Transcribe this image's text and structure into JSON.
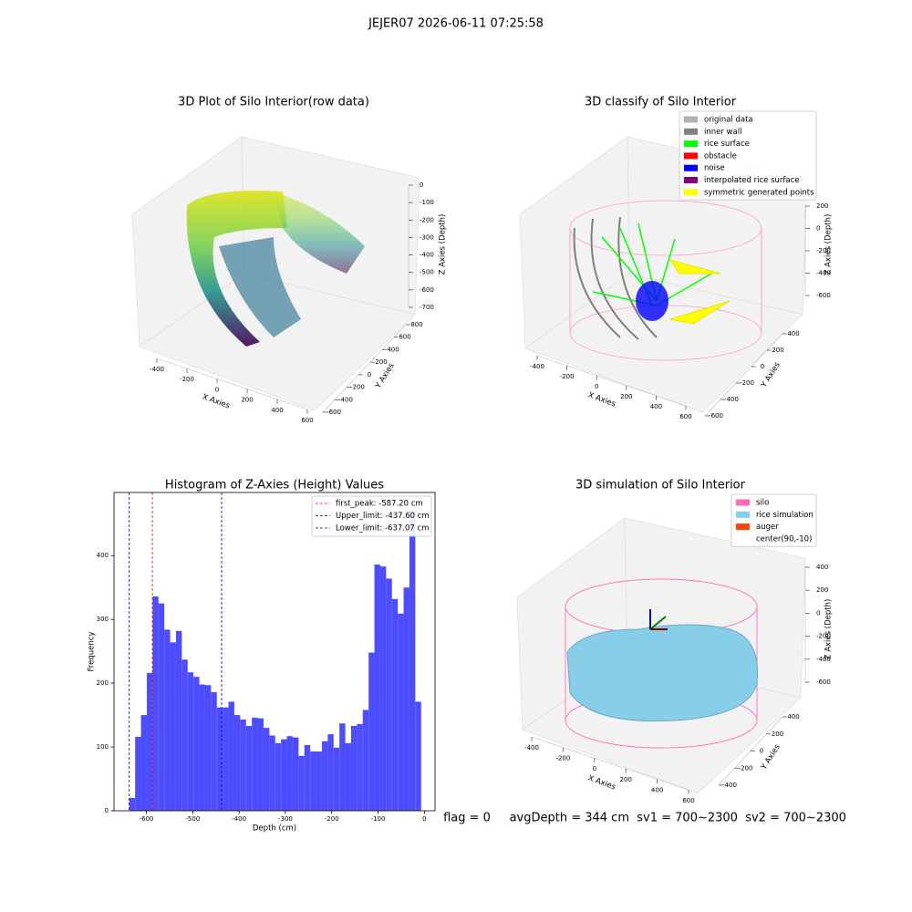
{
  "title": "JEJER07 2026-06-11 07:25:58",
  "footer": "flag = 0     avgDepth = 344 cm  sv1 = 700~2300  sv2 = 700~2300",
  "chart_data": [
    {
      "type": "scatter3d",
      "title": "3D Plot of Silo Interior(row data)",
      "x_label": "X Axies",
      "y_label": "Y Axies",
      "z_label": "Z Axies (Depth)",
      "xlim": [
        -400,
        600
      ],
      "xticks": [
        -400,
        -200,
        0,
        200,
        400,
        600
      ],
      "ylim": [
        -600,
        800
      ],
      "yticks": [
        -600,
        -400,
        -200,
        0,
        200,
        400,
        600,
        800
      ],
      "zlim": [
        -700,
        0
      ],
      "zticks": [
        -700,
        -600,
        -500,
        -400,
        -300,
        -200,
        -100,
        0
      ]
    },
    {
      "type": "scatter3d",
      "title": "3D classify of Silo Interior",
      "x_label": "X Axies",
      "y_label": "Y Axies",
      "z_label": "Z Axies (Depth)",
      "xlim": [
        -400,
        600
      ],
      "xticks": [
        -400,
        -200,
        0,
        200,
        400,
        600
      ],
      "ylim": [
        -600,
        400
      ],
      "yticks": [
        -600,
        -400,
        -200,
        0,
        200,
        400
      ],
      "zlim": [
        -600,
        200
      ],
      "zticks": [
        -600,
        -400,
        -200,
        0,
        200
      ],
      "legend_items": [
        {
          "name": "original data",
          "color": "#b0b0b0"
        },
        {
          "name": "inner wall",
          "color": "#808080"
        },
        {
          "name": "rice surface",
          "color": "#00ff00"
        },
        {
          "name": "obstacle",
          "color": "#ff0000"
        },
        {
          "name": "noise",
          "color": "#0000ff"
        },
        {
          "name": "interpolated rice surface",
          "color": "#800080"
        },
        {
          "name": "symmetric generated points",
          "color": "#ffff00"
        }
      ],
      "legend": "upper right"
    },
    {
      "type": "histogram",
      "title": "Histogram of Z-Axies (Height) Values",
      "x_label": "Depth (cm)",
      "y_label": "Frequency",
      "color": "#4d4dff",
      "bins": [
        -637,
        -624.4,
        -611.8,
        -599.2,
        -586.6,
        -574,
        -561.4,
        -548.8,
        -536.2,
        -523.6,
        -511,
        -498.4,
        -485.8,
        -473.2,
        -460.6,
        -448,
        -435.4,
        -422.8,
        -410.2,
        -397.6,
        -385,
        -372.4,
        -359.8,
        -347.2,
        -334.6,
        -322,
        -309.4,
        -296.8,
        -284.2,
        -271.6,
        -259,
        -246.4,
        -233.8,
        -221.2,
        -208.6,
        -196,
        -183.4,
        -170.8,
        -158.2,
        -145.6,
        -133,
        -120.4,
        -107.8,
        -95.2,
        -82.6,
        -70,
        -57.4,
        -44.8,
        -32.2,
        -19.6,
        -7
      ],
      "values": [
        20,
        116,
        150,
        216,
        336,
        325,
        284,
        264,
        282,
        237,
        217,
        210,
        198,
        197,
        186,
        162,
        162,
        171,
        150,
        143,
        133,
        146,
        145,
        130,
        118,
        106,
        112,
        117,
        115,
        86,
        103,
        93,
        93,
        109,
        120,
        99,
        137,
        106,
        133,
        136,
        158,
        248,
        386,
        383,
        364,
        332,
        309,
        350,
        470,
        171
      ],
      "xlim": [
        -670,
        23
      ],
      "xticks": [
        -600,
        -500,
        -400,
        -300,
        -200,
        -100,
        0
      ],
      "ylim": [
        0,
        499
      ],
      "yticks": [
        0,
        100,
        200,
        300,
        400
      ],
      "lines": [
        {
          "label": "first_peak: -587.20 cm",
          "value": -587.2,
          "color": "#ff0000"
        },
        {
          "label": "Upper_limit: -437.60 cm",
          "value": -437.6,
          "color": "#0000aa"
        },
        {
          "label": "Lower_limit: -637.07 cm",
          "value": -637.07,
          "color": "#0000aa"
        }
      ],
      "legend": "upper right"
    },
    {
      "type": "surface3d",
      "title": "3D simulation of Silo Interior",
      "x_label": "X Axies",
      "y_label": "Y Axies",
      "z_label": "Z Axies (Depth)",
      "xlim": [
        -400,
        600
      ],
      "xticks": [
        -400,
        -200,
        0,
        200,
        400,
        600
      ],
      "ylim": [
        -400,
        400
      ],
      "yticks": [
        -400,
        -200,
        0,
        200,
        400
      ],
      "zlim": [
        -600,
        400
      ],
      "zticks": [
        -600,
        -400,
        -200,
        0,
        200,
        400
      ],
      "legend_items": [
        {
          "name": "silo",
          "color": "#ff69b4"
        },
        {
          "name": "rice simulation",
          "color": "#87ceeb"
        },
        {
          "name": "auger",
          "color": "#ff4500"
        },
        {
          "name": "center(90,-10)"
        }
      ],
      "legend": "upper right"
    }
  ]
}
